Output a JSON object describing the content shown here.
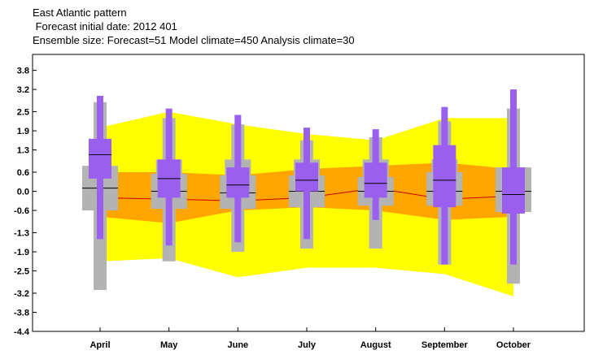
{
  "title_lines": [
    "East Atlantic pattern",
    " Forecast initial date: 2012 401",
    "Ensemble size: Forecast=51 Model climate=450 Analysis climate=30"
  ],
  "colors": {
    "outer_band": "#ffff00",
    "inner_band": "#ffa500",
    "climate_box": "#b3b3b3",
    "forecast_box": "#9b5ff0",
    "median_line": "#cc0000",
    "zero_line": "#000000"
  },
  "chart_data": {
    "type": "box",
    "title": "East Atlantic pattern",
    "xlabel": "",
    "ylabel": "",
    "ylim": [
      -4.4,
      4.4
    ],
    "yticks": [
      "3.8",
      "3.2",
      "2.5",
      "1.9",
      "1.3",
      "0.6",
      "0.0",
      "-0.6",
      "-1.3",
      "-1.9",
      "-2.5",
      "-3.2",
      "-3.8",
      "-4.4"
    ],
    "ytick_values": [
      3.8,
      3.2,
      2.5,
      1.9,
      1.3,
      0.6,
      0.0,
      -0.6,
      -1.3,
      -1.9,
      -2.5,
      -3.2,
      -3.8,
      -4.4
    ],
    "categories": [
      "April",
      "May",
      "June",
      "July",
      "August",
      "September",
      "October"
    ],
    "analysis_climate_bands": {
      "outer_upper": [
        2.0,
        2.5,
        2.1,
        1.8,
        1.6,
        2.3,
        2.3
      ],
      "outer_lower": [
        -2.2,
        -2.1,
        -2.7,
        -2.4,
        -2.4,
        -2.6,
        -3.3
      ],
      "inner_upper": [
        0.6,
        0.6,
        0.5,
        0.7,
        0.8,
        0.9,
        0.7
      ],
      "inner_lower": [
        -0.8,
        -1.0,
        -0.6,
        -0.5,
        -0.6,
        -0.9,
        -0.8
      ],
      "median": [
        -0.2,
        -0.25,
        -0.3,
        -0.2,
        0.1,
        -0.25,
        -0.15
      ]
    },
    "series": [
      {
        "name": "Model climate",
        "whisker_low": [
          -3.1,
          -2.2,
          -1.9,
          -1.8,
          -1.8,
          -2.3,
          -2.9
        ],
        "p10": [
          -0.6,
          -0.55,
          -0.55,
          -0.5,
          -0.45,
          -0.45,
          -0.65
        ],
        "p25": [
          -0.6,
          -0.55,
          -0.55,
          -0.5,
          -0.45,
          -0.45,
          -0.65
        ],
        "median": [
          0.1,
          0.0,
          -0.05,
          0.0,
          0.0,
          0.0,
          0.0
        ],
        "p75": [
          0.8,
          0.55,
          0.5,
          0.5,
          0.45,
          0.6,
          0.75
        ],
        "p90": [
          0.8,
          1.0,
          1.0,
          1.0,
          1.0,
          1.0,
          0.75
        ],
        "whisker_high": [
          2.8,
          2.3,
          2.1,
          1.6,
          1.7,
          2.2,
          2.6
        ]
      },
      {
        "name": "Forecast",
        "whisker_low": [
          -1.5,
          -1.7,
          -1.6,
          -1.5,
          -0.9,
          -2.3,
          -2.3
        ],
        "p10": [
          0.4,
          -0.2,
          -0.2,
          0.0,
          -0.2,
          -0.5,
          -0.7
        ],
        "p25": [
          0.4,
          -0.2,
          -0.2,
          0.0,
          -0.2,
          -0.5,
          -0.7
        ],
        "median": [
          1.15,
          0.4,
          0.2,
          0.35,
          0.25,
          0.35,
          -0.1
        ],
        "p75": [
          1.65,
          1.0,
          0.75,
          0.9,
          0.9,
          1.45,
          0.75
        ],
        "p90": [
          1.65,
          1.0,
          0.75,
          0.9,
          0.9,
          1.45,
          0.75
        ],
        "whisker_high": [
          3.0,
          2.6,
          2.4,
          2.0,
          1.95,
          2.65,
          3.2
        ]
      }
    ],
    "grid": false,
    "legend": "none"
  }
}
